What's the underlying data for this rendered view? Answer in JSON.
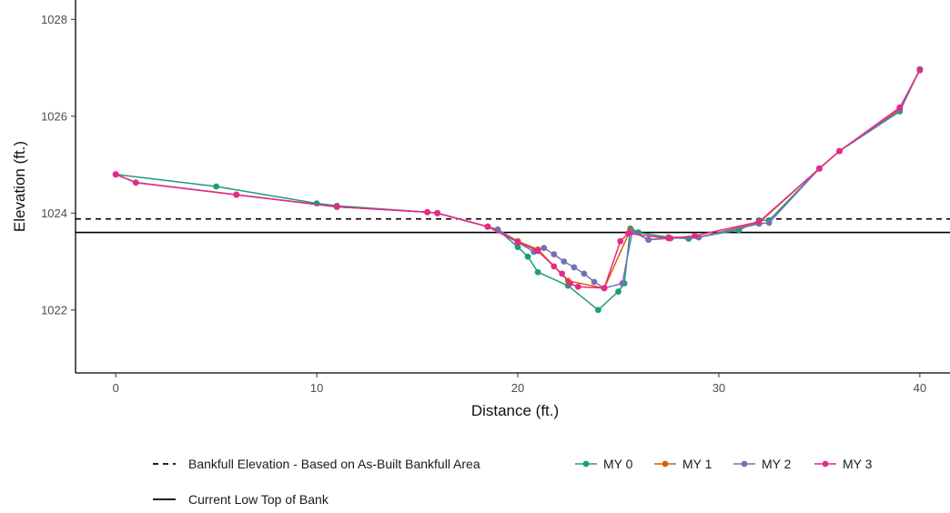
{
  "chart_data": {
    "type": "line",
    "title": "",
    "xlabel": "Distance (ft.)",
    "ylabel": "Elevation (ft.)",
    "xlim": [
      -2,
      41.5
    ],
    "ylim": [
      1020.7,
      1028.4
    ],
    "xticks": [
      0,
      10,
      20,
      30,
      40
    ],
    "yticks": [
      1022,
      1024,
      1026,
      1028
    ],
    "grid": false,
    "legend_position": "bottom",
    "reference_lines": [
      {
        "name": "Bankfull Elevation - Based on As-Built Bankfull Area",
        "y": 1023.88,
        "style": "dashed",
        "color": "#000000"
      },
      {
        "name": "Current Low Top of Bank",
        "y": 1023.6,
        "style": "solid",
        "color": "#000000"
      }
    ],
    "series": [
      {
        "name": "MY 0",
        "color": "#1b9e77",
        "x": [
          0,
          5,
          10,
          11,
          15.5,
          16,
          18.5,
          19,
          20,
          20.5,
          21,
          22.5,
          24,
          25,
          25.3,
          25.6,
          26,
          27.5,
          28.5,
          31,
          32,
          32.5,
          35,
          36,
          39,
          40
        ],
        "y": [
          1024.8,
          1024.55,
          1024.2,
          1024.15,
          1024.02,
          1024.0,
          1023.72,
          1023.66,
          1023.3,
          1023.1,
          1022.78,
          1022.5,
          1022.0,
          1022.38,
          1022.55,
          1023.68,
          1023.6,
          1023.5,
          1023.47,
          1023.65,
          1023.85,
          1023.85,
          1024.92,
          1025.28,
          1026.1,
          1026.97
        ]
      },
      {
        "name": "MY 1",
        "color": "#d95f02",
        "x": [
          0,
          1,
          6,
          11,
          15.5,
          16,
          18.5,
          19,
          20,
          21,
          22.5,
          24.3,
          25.6,
          26.5,
          27.5,
          29,
          32,
          35,
          36,
          39,
          40
        ],
        "y": [
          1024.8,
          1024.63,
          1024.38,
          1024.13,
          1024.02,
          1024.0,
          1023.72,
          1023.66,
          1023.42,
          1023.25,
          1022.6,
          1022.45,
          1023.65,
          1023.45,
          1023.5,
          1023.5,
          1023.8,
          1024.92,
          1025.28,
          1026.15,
          1026.97
        ]
      },
      {
        "name": "MY 2",
        "color": "#7570b3",
        "x": [
          0,
          1,
          6,
          11,
          15.5,
          16,
          18.5,
          19,
          20,
          20.8,
          21.3,
          21.8,
          22.3,
          22.8,
          23.3,
          23.8,
          24.3,
          25.2,
          25.7,
          26.5,
          27.6,
          29,
          32,
          32.5,
          35,
          36,
          39,
          40
        ],
        "y": [
          1024.8,
          1024.63,
          1024.38,
          1024.13,
          1024.02,
          1024.0,
          1023.72,
          1023.66,
          1023.4,
          1023.2,
          1023.28,
          1023.15,
          1023.0,
          1022.88,
          1022.75,
          1022.58,
          1022.45,
          1022.55,
          1023.62,
          1023.45,
          1023.48,
          1023.5,
          1023.78,
          1023.8,
          1024.92,
          1025.28,
          1026.12,
          1026.97
        ]
      },
      {
        "name": "MY 3",
        "color": "#e7298a",
        "x": [
          0,
          1,
          6,
          11,
          15.5,
          16,
          18.5,
          20,
          21,
          21.8,
          22.2,
          22.6,
          23,
          24.3,
          25.1,
          25.5,
          27.5,
          28.8,
          32,
          35,
          36,
          39,
          40
        ],
        "y": [
          1024.8,
          1024.63,
          1024.38,
          1024.13,
          1024.02,
          1024.0,
          1023.72,
          1023.4,
          1023.22,
          1022.9,
          1022.75,
          1022.55,
          1022.48,
          1022.45,
          1023.42,
          1023.58,
          1023.48,
          1023.53,
          1023.82,
          1024.92,
          1025.28,
          1026.18,
          1026.95
        ]
      }
    ]
  }
}
